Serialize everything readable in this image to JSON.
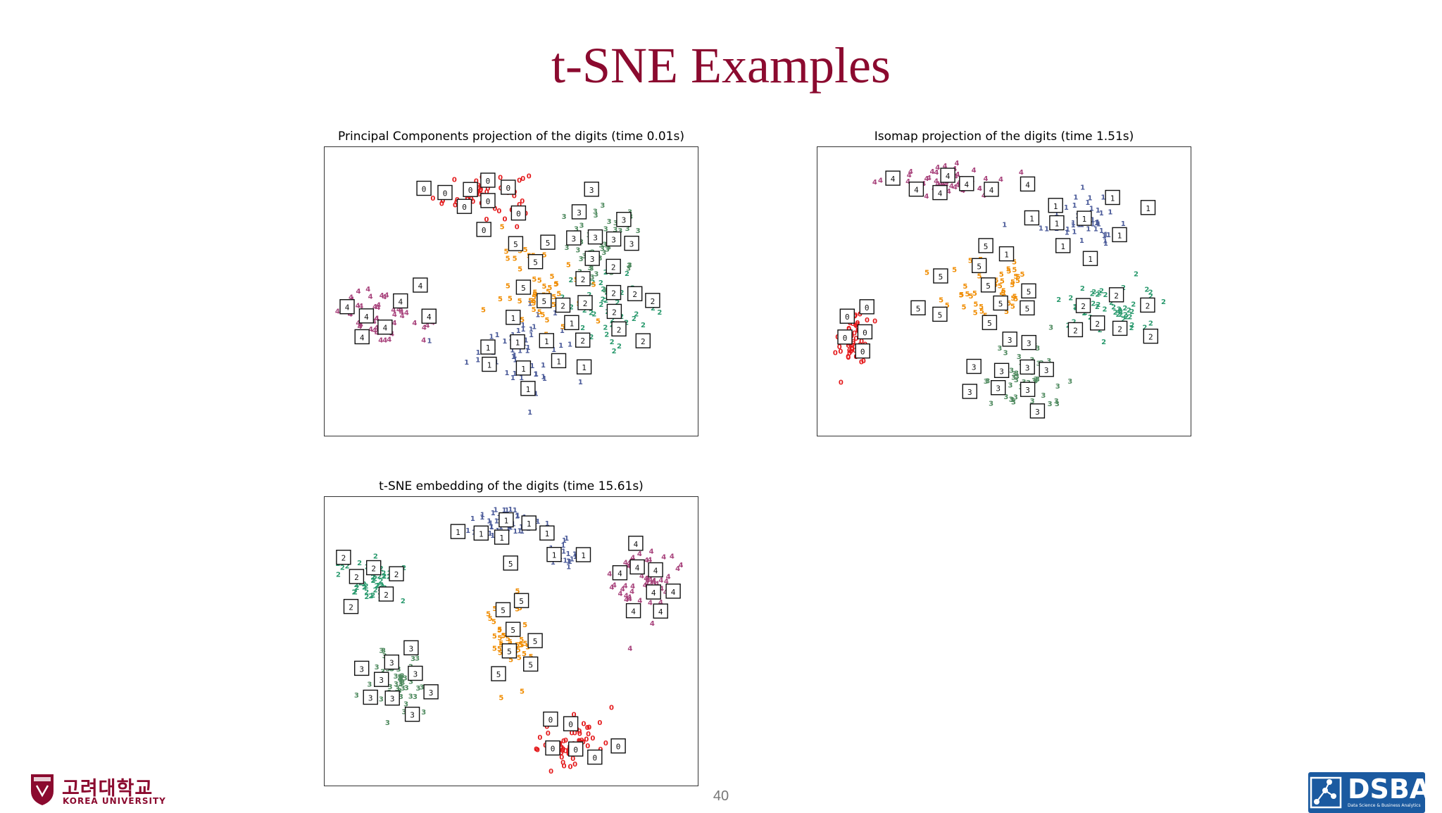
{
  "slide": {
    "title": "t-SNE Examples",
    "page_number": "40"
  },
  "footer": {
    "university_ko": "고려대학교",
    "university_en": "KOREA UNIVERSITY",
    "lab_name": "DSBA",
    "lab_subtitle": "Data Science & Business Analytics"
  },
  "colors": {
    "title": "#8b0a2f",
    "digit_0": "#e41a1c",
    "digit_1": "#4a5a99",
    "digit_2": "#2a9a6e",
    "digit_3": "#4f8a5f",
    "digit_4": "#a8437c",
    "digit_5": "#f08c00"
  },
  "chart_data": [
    {
      "type": "scatter",
      "title": "Principal Components projection of the digits (time 0.01s)",
      "xlabel": "",
      "ylabel": "",
      "axes": "off",
      "xlim": [
        0,
        1
      ],
      "ylim": [
        0,
        1
      ],
      "marker": "digit glyphs colored by class; handwritten-digit thumbnails in boxes",
      "clusters": [
        {
          "label": "0",
          "center": [
            0.42,
            0.85
          ],
          "spread": [
            0.12,
            0.08
          ],
          "count": 65
        },
        {
          "label": "1",
          "center": [
            0.52,
            0.28
          ],
          "spread": [
            0.13,
            0.14
          ],
          "count": 60
        },
        {
          "label": "2",
          "center": [
            0.78,
            0.44
          ],
          "spread": [
            0.12,
            0.12
          ],
          "count": 60
        },
        {
          "label": "3",
          "center": [
            0.76,
            0.66
          ],
          "spread": [
            0.11,
            0.13
          ],
          "count": 60
        },
        {
          "label": "4",
          "center": [
            0.14,
            0.4
          ],
          "spread": [
            0.11,
            0.1
          ],
          "count": 60
        },
        {
          "label": "5",
          "center": [
            0.58,
            0.52
          ],
          "spread": [
            0.1,
            0.14
          ],
          "count": 60
        }
      ]
    },
    {
      "type": "scatter",
      "title": "Isomap projection of the digits (time 1.51s)",
      "xlabel": "",
      "ylabel": "",
      "axes": "off",
      "xlim": [
        0,
        1
      ],
      "ylim": [
        0,
        1
      ],
      "marker": "digit glyphs colored by class; handwritten-digit thumbnails in boxes",
      "clusters": [
        {
          "label": "0",
          "center": [
            0.08,
            0.32
          ],
          "spread": [
            0.04,
            0.1
          ],
          "count": 60
        },
        {
          "label": "1",
          "center": [
            0.72,
            0.76
          ],
          "spread": [
            0.12,
            0.1
          ],
          "count": 60
        },
        {
          "label": "2",
          "center": [
            0.8,
            0.42
          ],
          "spread": [
            0.12,
            0.1
          ],
          "count": 60
        },
        {
          "label": "3",
          "center": [
            0.55,
            0.18
          ],
          "spread": [
            0.12,
            0.12
          ],
          "count": 60
        },
        {
          "label": "4",
          "center": [
            0.33,
            0.9
          ],
          "spread": [
            0.16,
            0.06
          ],
          "count": 60
        },
        {
          "label": "5",
          "center": [
            0.46,
            0.5
          ],
          "spread": [
            0.12,
            0.12
          ],
          "count": 60
        }
      ]
    },
    {
      "type": "scatter",
      "title": "t-SNE embedding of the digits (time 15.61s)",
      "xlabel": "",
      "ylabel": "",
      "axes": "off",
      "xlim": [
        0,
        1
      ],
      "ylim": [
        0,
        1
      ],
      "marker": "digit glyphs colored by class; handwritten-digit thumbnails in boxes",
      "clusters": [
        {
          "label": "0",
          "center": [
            0.68,
            0.12
          ],
          "spread": [
            0.1,
            0.09
          ],
          "count": 70
        },
        {
          "label": "1",
          "center": [
            0.48,
            0.92
          ],
          "spread": [
            0.1,
            0.06
          ],
          "count": 55
        },
        {
          "label": "1",
          "center": [
            0.66,
            0.8
          ],
          "spread": [
            0.04,
            0.05
          ],
          "count": 20
        },
        {
          "label": "2",
          "center": [
            0.1,
            0.72
          ],
          "spread": [
            0.09,
            0.08
          ],
          "count": 60
        },
        {
          "label": "3",
          "center": [
            0.18,
            0.34
          ],
          "spread": [
            0.08,
            0.12
          ],
          "count": 60
        },
        {
          "label": "4",
          "center": [
            0.88,
            0.72
          ],
          "spread": [
            0.08,
            0.14
          ],
          "count": 65
        },
        {
          "label": "5",
          "center": [
            0.5,
            0.5
          ],
          "spread": [
            0.06,
            0.16
          ],
          "count": 60
        }
      ]
    }
  ]
}
